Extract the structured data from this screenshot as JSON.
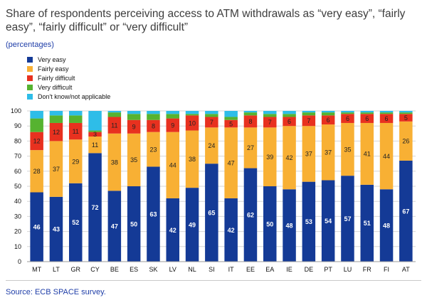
{
  "title": "Share of respondents perceiving access to ATM withdrawals as “very easy”, “fairly easy”, “fairly difficult” or “very difficult”",
  "subtitle": "(percentages)",
  "source": "Source: ECB SPACE survey.",
  "colors": {
    "very_easy": "#143a96",
    "fairly_easy": "#f8b034",
    "fairly_difficult": "#e8311f",
    "very_difficult": "#56b330",
    "dont_know": "#2ebde8"
  },
  "chart_data": {
    "type": "bar",
    "stacked": true,
    "title": "Share of respondents perceiving access to ATM withdrawals as “very easy”, “fairly easy”, “fairly difficult” or “very difficult”",
    "ylabel": "percentages",
    "ylim": [
      0,
      100
    ],
    "yticks": [
      0,
      10,
      20,
      30,
      40,
      50,
      60,
      70,
      80,
      90,
      100
    ],
    "categories": [
      "MT",
      "LT",
      "GR",
      "CY",
      "BE",
      "ES",
      "SK",
      "LV",
      "NL",
      "SI",
      "IT",
      "EE",
      "EA",
      "IE",
      "DE",
      "PT",
      "LU",
      "FR",
      "FI",
      "AT"
    ],
    "series": [
      {
        "key": "very_easy",
        "name": "Very easy",
        "values": [
          46,
          43,
          52,
          72,
          47,
          50,
          63,
          42,
          49,
          65,
          42,
          62,
          50,
          48,
          53,
          54,
          57,
          51,
          48,
          67
        ]
      },
      {
        "key": "fairly_easy",
        "name": "Fairly easy",
        "values": [
          28,
          37,
          29,
          11,
          38,
          35,
          23,
          44,
          38,
          24,
          47,
          27,
          39,
          42,
          37,
          37,
          35,
          41,
          44,
          26
        ]
      },
      {
        "key": "fairly_difficult",
        "name": "Fairly difficult",
        "values": [
          12,
          12,
          11,
          3,
          11,
          9,
          8,
          9,
          10,
          7,
          5,
          8,
          7,
          6,
          7,
          6,
          6,
          6,
          6,
          5
        ]
      },
      {
        "key": "very_difficult",
        "name": "Very difficult",
        "values": [
          9,
          5,
          5,
          1,
          3,
          4,
          4,
          3,
          1,
          2,
          2,
          2,
          2,
          2,
          2,
          2,
          1,
          1,
          1,
          1
        ]
      },
      {
        "key": "dont_know",
        "name": "Don't know/not applicable",
        "values": [
          5,
          3,
          3,
          13,
          1,
          2,
          2,
          2,
          2,
          2,
          4,
          1,
          2,
          2,
          1,
          1,
          1,
          1,
          1,
          1
        ]
      }
    ],
    "show_labels_for": [
      "very_easy",
      "fairly_easy",
      "fairly_difficult"
    ],
    "grid": true,
    "legend": "top-left"
  }
}
